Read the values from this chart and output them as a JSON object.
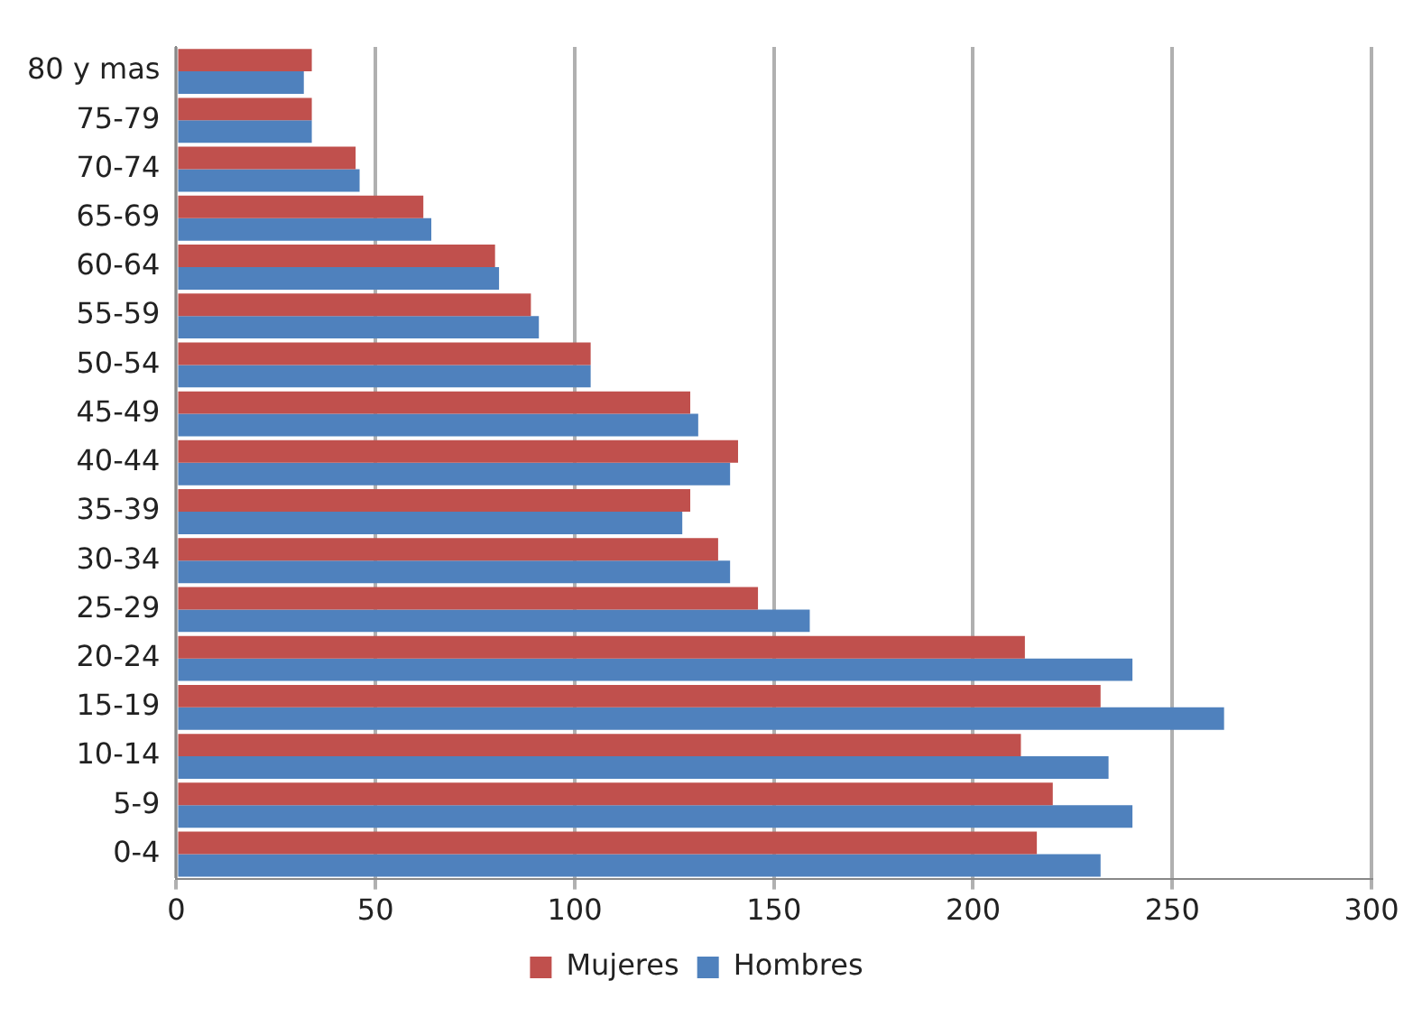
{
  "chart_data": {
    "type": "bar",
    "orientation": "horizontal",
    "categories": [
      "80 y mas",
      "75-79",
      "70-74",
      "65-69",
      "60-64",
      "55-59",
      "50-54",
      "45-49",
      "40-44",
      "35-39",
      "30-34",
      "25-29",
      "20-24",
      "15-19",
      "10-14",
      "5-9",
      "0-4"
    ],
    "series": [
      {
        "name": "Mujeres",
        "color": "#c0504d",
        "values": [
          34,
          34,
          45,
          62,
          80,
          89,
          104,
          129,
          141,
          129,
          136,
          146,
          213,
          232,
          212,
          220,
          216
        ]
      },
      {
        "name": "Hombres",
        "color": "#4f81bd",
        "values": [
          32,
          34,
          46,
          64,
          81,
          91,
          104,
          131,
          139,
          127,
          139,
          159,
          240,
          263,
          234,
          240,
          232
        ]
      }
    ],
    "xlim": [
      0,
      300
    ],
    "xticks": [
      0,
      50,
      100,
      150,
      200,
      250,
      300
    ],
    "grid": "x",
    "legend": "bottom"
  }
}
